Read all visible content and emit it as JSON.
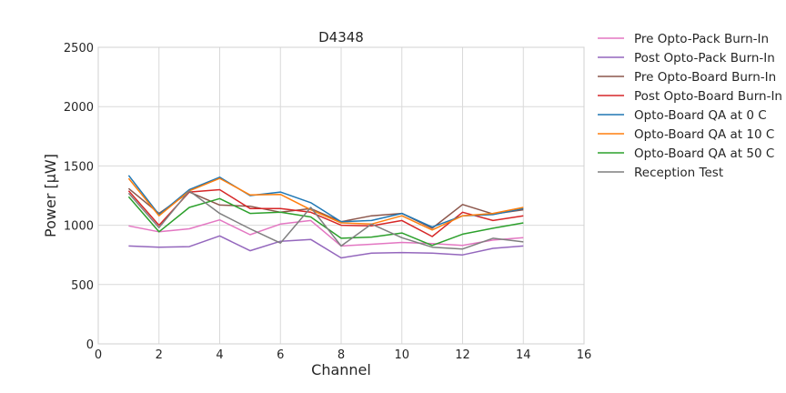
{
  "chart_data": {
    "type": "line",
    "title": "D4348",
    "xlabel": "Channel",
    "ylabel": "Power [μW]",
    "xlim": [
      0,
      16
    ],
    "ylim": [
      0,
      2500
    ],
    "xticks": [
      "0",
      "2",
      "4",
      "6",
      "8",
      "10",
      "12",
      "14",
      "16"
    ],
    "yticks": [
      "0",
      "500",
      "1000",
      "1500",
      "2000",
      "2500"
    ],
    "grid": true,
    "legend_position": "outside-right",
    "x": [
      1,
      2,
      3,
      4,
      5,
      6,
      7,
      8,
      9,
      10,
      11,
      12,
      13,
      14
    ],
    "series": [
      {
        "name": "Pre Opto-Pack Burn-In",
        "color": "#e377c2",
        "values": [
          995,
          945,
          970,
          1045,
          920,
          1010,
          1040,
          825,
          840,
          855,
          845,
          830,
          875,
          895
        ]
      },
      {
        "name": "Post Opto-Pack Burn-In",
        "color": "#9467bd",
        "values": [
          825,
          815,
          820,
          910,
          785,
          865,
          880,
          725,
          765,
          770,
          765,
          750,
          805,
          825
        ]
      },
      {
        "name": "Pre Opto-Board Burn-In",
        "color": "#8c564b",
        "values": [
          1310,
          1100,
          1280,
          1170,
          1160,
          1110,
          1140,
          1030,
          1080,
          1100,
          975,
          1175,
          1095,
          1130
        ]
      },
      {
        "name": "Post Opto-Board Burn-In",
        "color": "#d62728",
        "values": [
          1290,
          1000,
          1280,
          1300,
          1140,
          1140,
          1110,
          1000,
          995,
          1040,
          905,
          1110,
          1040,
          1080
        ]
      },
      {
        "name": "Opto-Board QA at 0 C",
        "color": "#1f77b4",
        "values": [
          1420,
          1090,
          1300,
          1405,
          1250,
          1280,
          1190,
          1030,
          1040,
          1100,
          985,
          1080,
          1090,
          1140
        ]
      },
      {
        "name": "Opto-Board QA at 10 C",
        "color": "#ff7f0e",
        "values": [
          1395,
          1080,
          1290,
          1395,
          1255,
          1260,
          1130,
          1020,
          1010,
          1080,
          960,
          1080,
          1100,
          1150
        ]
      },
      {
        "name": "Opto-Board QA at 50 C",
        "color": "#2ca02c",
        "values": [
          1240,
          945,
          1150,
          1225,
          1100,
          1110,
          1070,
          890,
          900,
          935,
          830,
          925,
          975,
          1020
        ]
      },
      {
        "name": "Reception Test",
        "color": "#7f7f7f",
        "values": [
          1270,
          980,
          1290,
          1100,
          970,
          850,
          1150,
          825,
          1010,
          895,
          815,
          800,
          890,
          860
        ]
      }
    ]
  }
}
